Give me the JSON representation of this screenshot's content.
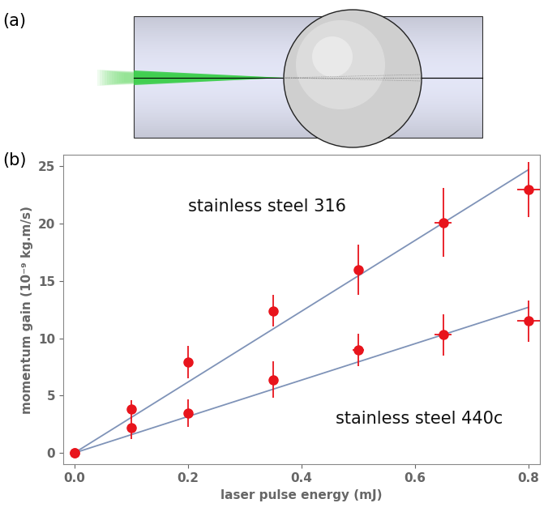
{
  "panel_labels": [
    "(a)",
    "(b)"
  ],
  "chart_data": {
    "type": "scatter",
    "x_label": "laser pulse energy (mJ)",
    "y_label": "momentum gain (10⁻⁹ kg.m/s)",
    "xlim": [
      -0.02,
      0.82
    ],
    "xticks": [
      {
        "value": 0,
        "label": "0.0"
      },
      0.2,
      0.4,
      0.6,
      0.8
    ],
    "ylim": [
      -1,
      26
    ],
    "yticks": [
      0,
      5,
      10,
      15,
      20,
      25
    ],
    "grid": false,
    "series": [
      {
        "name": "stainless steel 316",
        "color": "#e8141c",
        "marker": "circle",
        "x": [
          0,
          0.1,
          0.2,
          0.35,
          0.5,
          0.65,
          0.8
        ],
        "values": [
          0,
          3.8,
          7.9,
          12.4,
          16.0,
          20.1,
          23.0
        ],
        "y_error": [
          0,
          0.8,
          1.4,
          1.4,
          2.2,
          3.0,
          2.4
        ],
        "x_error": [
          0,
          0,
          0,
          0,
          0,
          0.015,
          0.02
        ],
        "fit": {
          "x": [
            0,
            0.8
          ],
          "values": [
            0,
            24.7
          ],
          "color": "#7f93b8"
        }
      },
      {
        "name": "stainless steel 440c",
        "color": "#e8141c",
        "marker": "circle",
        "x": [
          0,
          0.1,
          0.2,
          0.35,
          0.5,
          0.65,
          0.8
        ],
        "values": [
          0,
          2.2,
          3.5,
          6.4,
          9.0,
          10.3,
          11.5
        ],
        "y_error": [
          0,
          1.0,
          1.2,
          1.6,
          1.4,
          1.8,
          1.8
        ],
        "x_error": [
          0,
          0,
          0,
          0,
          0.01,
          0.015,
          0.02
        ],
        "fit": {
          "x": [
            0,
            0.8
          ],
          "values": [
            0,
            12.7
          ],
          "color": "#7f93b8"
        }
      }
    ]
  }
}
